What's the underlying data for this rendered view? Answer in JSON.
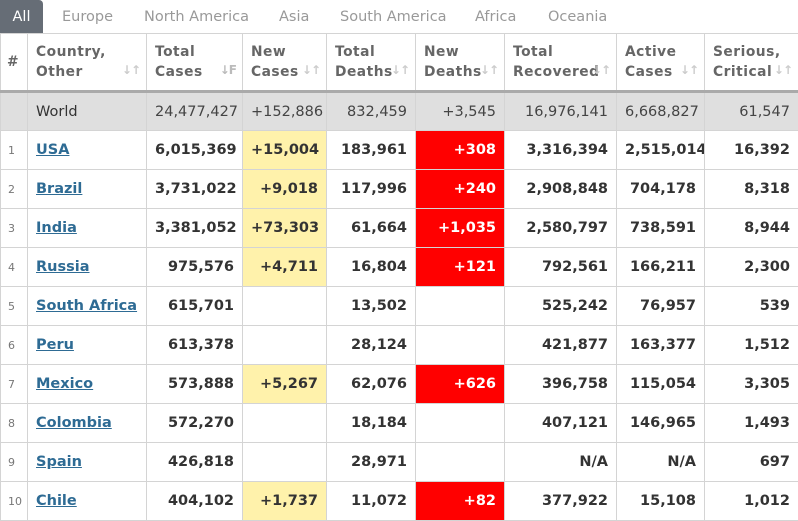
{
  "tabs": [
    {
      "label": "All",
      "active": true
    },
    {
      "label": "Europe"
    },
    {
      "label": "North America"
    },
    {
      "label": "Asia"
    },
    {
      "label": "South America"
    },
    {
      "label": "Africa"
    },
    {
      "label": "Oceania"
    }
  ],
  "headers": {
    "idx": "#",
    "country": [
      "Country,",
      "Other"
    ],
    "total_cases": [
      "Total",
      "Cases"
    ],
    "new_cases": [
      "New",
      "Cases"
    ],
    "total_deaths": [
      "Total",
      "Deaths"
    ],
    "new_deaths": [
      "New",
      "Deaths"
    ],
    "total_recovered": [
      "Total",
      "Recovered"
    ],
    "active_cases": [
      "Active",
      "Cases"
    ],
    "serious": [
      "Serious,",
      "Critical"
    ]
  },
  "world": {
    "country": "World",
    "total_cases": "24,477,427",
    "new_cases": "+152,886",
    "total_deaths": "832,459",
    "new_deaths": "+3,545",
    "total_recovered": "16,976,141",
    "active_cases": "6,668,827",
    "serious": "61,547"
  },
  "rows": [
    {
      "idx": "1",
      "country": "USA",
      "total_cases": "6,015,369",
      "new_cases": "+15,004",
      "total_deaths": "183,961",
      "new_deaths": "+308",
      "total_recovered": "3,316,394",
      "active_cases": "2,515,014",
      "serious": "16,392"
    },
    {
      "idx": "2",
      "country": "Brazil",
      "total_cases": "3,731,022",
      "new_cases": "+9,018",
      "total_deaths": "117,996",
      "new_deaths": "+240",
      "total_recovered": "2,908,848",
      "active_cases": "704,178",
      "serious": "8,318"
    },
    {
      "idx": "3",
      "country": "India",
      "total_cases": "3,381,052",
      "new_cases": "+73,303",
      "total_deaths": "61,664",
      "new_deaths": "+1,035",
      "total_recovered": "2,580,797",
      "active_cases": "738,591",
      "serious": "8,944"
    },
    {
      "idx": "4",
      "country": "Russia",
      "total_cases": "975,576",
      "new_cases": "+4,711",
      "total_deaths": "16,804",
      "new_deaths": "+121",
      "total_recovered": "792,561",
      "active_cases": "166,211",
      "serious": "2,300"
    },
    {
      "idx": "5",
      "country": "South Africa",
      "total_cases": "615,701",
      "new_cases": "",
      "total_deaths": "13,502",
      "new_deaths": "",
      "total_recovered": "525,242",
      "active_cases": "76,957",
      "serious": "539"
    },
    {
      "idx": "6",
      "country": "Peru",
      "total_cases": "613,378",
      "new_cases": "",
      "total_deaths": "28,124",
      "new_deaths": "",
      "total_recovered": "421,877",
      "active_cases": "163,377",
      "serious": "1,512"
    },
    {
      "idx": "7",
      "country": "Mexico",
      "total_cases": "573,888",
      "new_cases": "+5,267",
      "total_deaths": "62,076",
      "new_deaths": "+626",
      "total_recovered": "396,758",
      "active_cases": "115,054",
      "serious": "3,305"
    },
    {
      "idx": "8",
      "country": "Colombia",
      "total_cases": "572,270",
      "new_cases": "",
      "total_deaths": "18,184",
      "new_deaths": "",
      "total_recovered": "407,121",
      "active_cases": "146,965",
      "serious": "1,493"
    },
    {
      "idx": "9",
      "country": "Spain",
      "total_cases": "426,818",
      "new_cases": "",
      "total_deaths": "28,971",
      "new_deaths": "",
      "total_recovered": "N/A",
      "active_cases": "N/A",
      "serious": "697"
    },
    {
      "idx": "10",
      "country": "Chile",
      "total_cases": "404,102",
      "new_cases": "+1,737",
      "total_deaths": "11,072",
      "new_deaths": "+82",
      "total_recovered": "377,922",
      "active_cases": "15,108",
      "serious": "1,012"
    }
  ],
  "colors": {
    "new_cases_highlight": "#fff2ab",
    "new_deaths_highlight": "#ff0000",
    "country_link": "#2e6b94",
    "active_tab": "#666d76"
  }
}
